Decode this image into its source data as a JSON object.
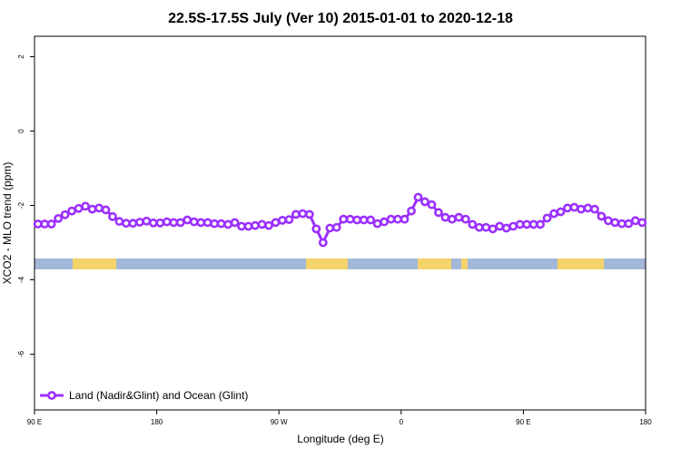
{
  "chart_data": {
    "type": "line",
    "title": "22.5S-17.5S July (Ver 10)   2015-01-01 to 2020-12-18",
    "xlabel": "Longitude (deg E)",
    "ylabel": "XCO2 - MLO trend (ppm)",
    "xlim": [
      90,
      540
    ],
    "ylim": [
      -7.5,
      2.55
    ],
    "xticks": [
      {
        "value": 90,
        "label": "90 E"
      },
      {
        "value": 180,
        "label": "180"
      },
      {
        "value": 270,
        "label": "90 W"
      },
      {
        "value": 360,
        "label": "0"
      },
      {
        "value": 450,
        "label": "90 E"
      },
      {
        "value": 540,
        "label": "180"
      }
    ],
    "yticks": [
      -6,
      -4,
      -2,
      0,
      2
    ],
    "legend_position": "bottom-left",
    "x": [
      92.5,
      97.5,
      102.5,
      107.5,
      112.5,
      117.5,
      122.5,
      127.5,
      132.5,
      137.5,
      142.5,
      147.5,
      152.5,
      157.5,
      162.5,
      167.5,
      172.5,
      177.5,
      182.5,
      187.5,
      192.5,
      197.5,
      202.5,
      207.5,
      212.5,
      217.5,
      222.5,
      227.5,
      232.5,
      237.5,
      242.5,
      247.5,
      252.5,
      257.5,
      262.5,
      267.5,
      272.5,
      277.5,
      282.5,
      287.5,
      292.5,
      297.5,
      302.5,
      307.5,
      312.5,
      317.5,
      322.5,
      327.5,
      332.5,
      337.5,
      342.5,
      347.5,
      352.5,
      357.5,
      362.5,
      367.5,
      372.5,
      377.5,
      382.5,
      387.5,
      392.5,
      397.5,
      402.5,
      407.5,
      412.5,
      417.5,
      422.5,
      427.5,
      432.5,
      437.5,
      442.5,
      447.5,
      452.5,
      457.5,
      462.5,
      467.5,
      472.5,
      477.5,
      482.5,
      487.5,
      492.5,
      497.5,
      502.5,
      507.5,
      512.5,
      517.5,
      522.5,
      527.5,
      532.5,
      537.5
    ],
    "series": [
      {
        "name": "Land (Nadir&Glint) and Ocean (Glint)",
        "color": "#9b30ff",
        "values": [
          -2.5,
          -2.5,
          -2.5,
          -2.35,
          -2.25,
          -2.15,
          -2.08,
          -2.02,
          -2.1,
          -2.07,
          -2.12,
          -2.3,
          -2.43,
          -2.48,
          -2.48,
          -2.45,
          -2.42,
          -2.47,
          -2.47,
          -2.44,
          -2.46,
          -2.46,
          -2.39,
          -2.44,
          -2.46,
          -2.46,
          -2.49,
          -2.49,
          -2.51,
          -2.46,
          -2.56,
          -2.56,
          -2.54,
          -2.51,
          -2.54,
          -2.46,
          -2.4,
          -2.38,
          -2.24,
          -2.22,
          -2.24,
          -2.63,
          -3.0,
          -2.61,
          -2.59,
          -2.37,
          -2.37,
          -2.39,
          -2.39,
          -2.39,
          -2.49,
          -2.44,
          -2.37,
          -2.37,
          -2.37,
          -2.15,
          -1.78,
          -1.9,
          -1.98,
          -2.19,
          -2.32,
          -2.37,
          -2.32,
          -2.37,
          -2.51,
          -2.59,
          -2.59,
          -2.63,
          -2.56,
          -2.61,
          -2.56,
          -2.51,
          -2.51,
          -2.51,
          -2.51,
          -2.34,
          -2.22,
          -2.17,
          -2.07,
          -2.05,
          -2.1,
          -2.07,
          -2.1,
          -2.29,
          -2.41,
          -2.46,
          -2.49,
          -2.49,
          -2.41,
          -2.46
        ]
      }
    ]
  }
}
